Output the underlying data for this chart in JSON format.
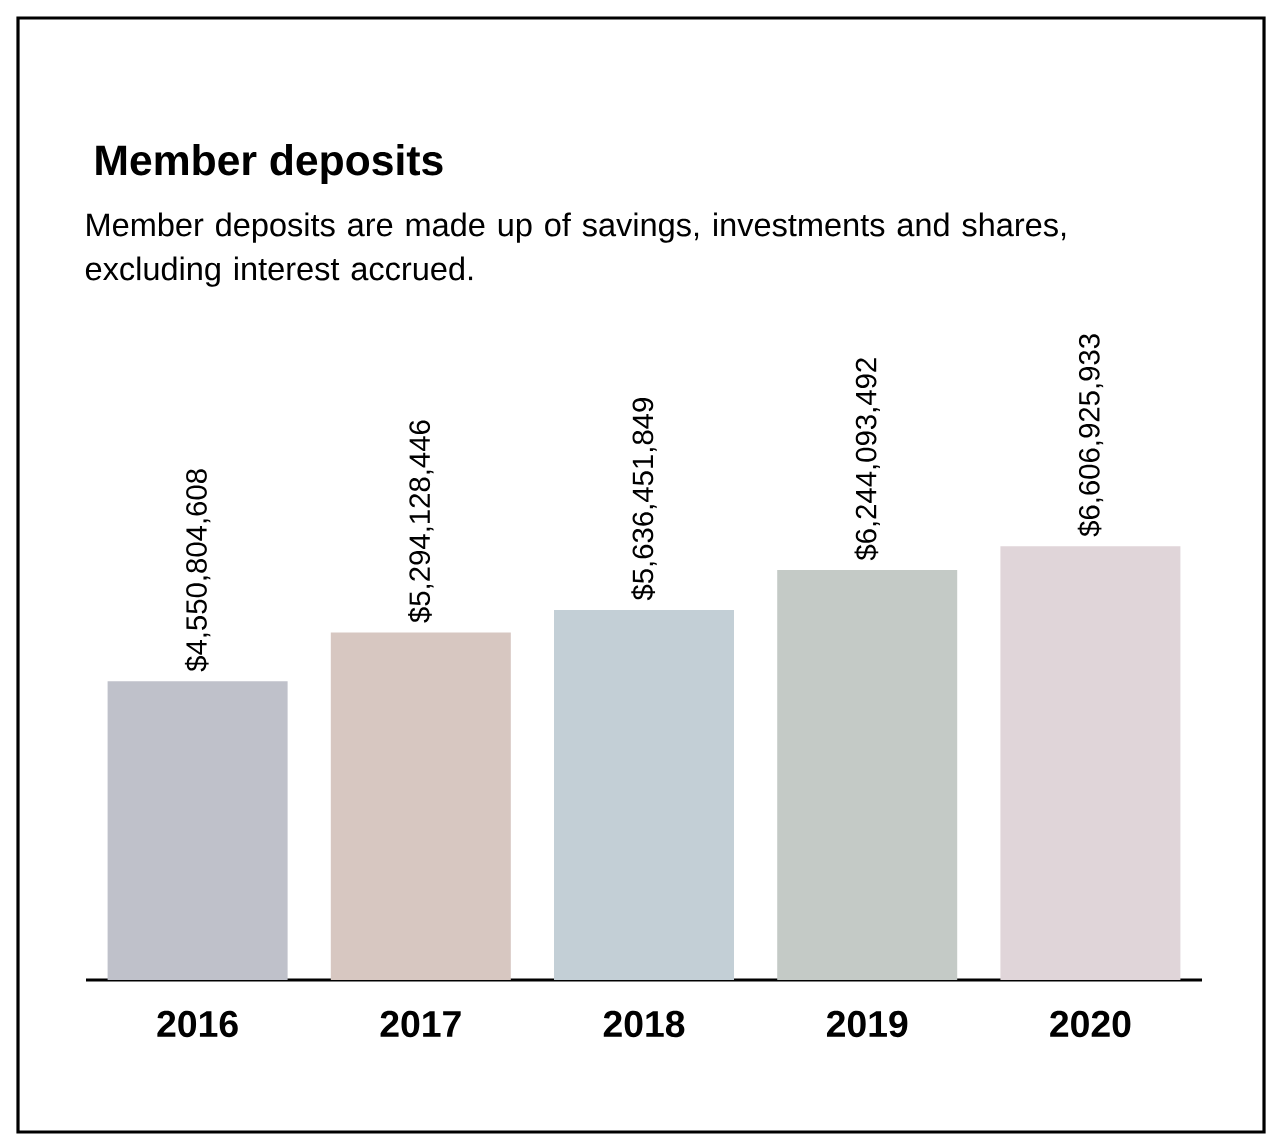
{
  "chart_data": {
    "type": "bar",
    "title": "Member deposits",
    "subtitle": "Member deposits are made up of savings, investments and shares, excluding interest accrued.",
    "categories": [
      "2016",
      "2017",
      "2018",
      "2019",
      "2020"
    ],
    "values": [
      4550804608,
      5294128446,
      5636451849,
      6244093492,
      6606925933
    ],
    "value_labels": [
      "$4,550,804,608",
      "$5,294,128,446",
      "$5,636,451,849",
      "$6,244,093,492",
      "$6,606,925,933"
    ],
    "colors": [
      "#bfc1ca",
      "#d7c7c1",
      "#c3cfd6",
      "#c4cac6",
      "#e0d5d9"
    ],
    "tick_labels": "x"
  }
}
